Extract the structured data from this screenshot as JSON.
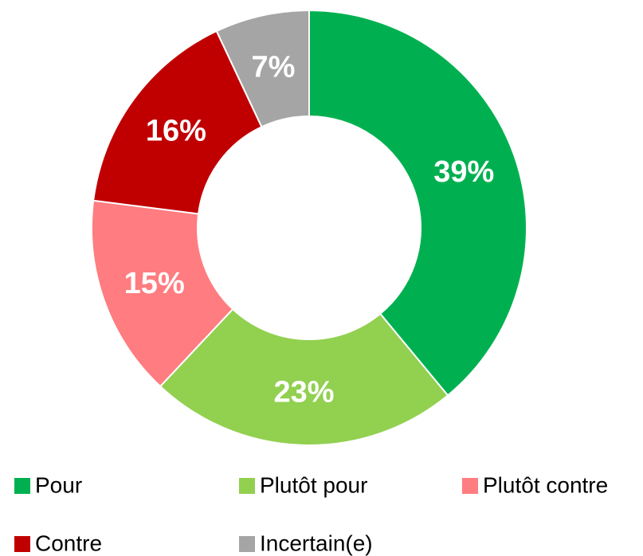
{
  "chart_data": {
    "type": "pie",
    "categories": [
      "Pour",
      "Plutôt pour",
      "Plutôt contre",
      "Contre",
      "Incertain(e)"
    ],
    "values": [
      39,
      23,
      15,
      16,
      7
    ],
    "value_labels": [
      "39%",
      "23%",
      "15%",
      "16%",
      "7%"
    ],
    "colors": [
      "#00b050",
      "#92d050",
      "#ff7c80",
      "#c00000",
      "#a5a5a5"
    ],
    "donut": true,
    "legend": "bottom"
  }
}
